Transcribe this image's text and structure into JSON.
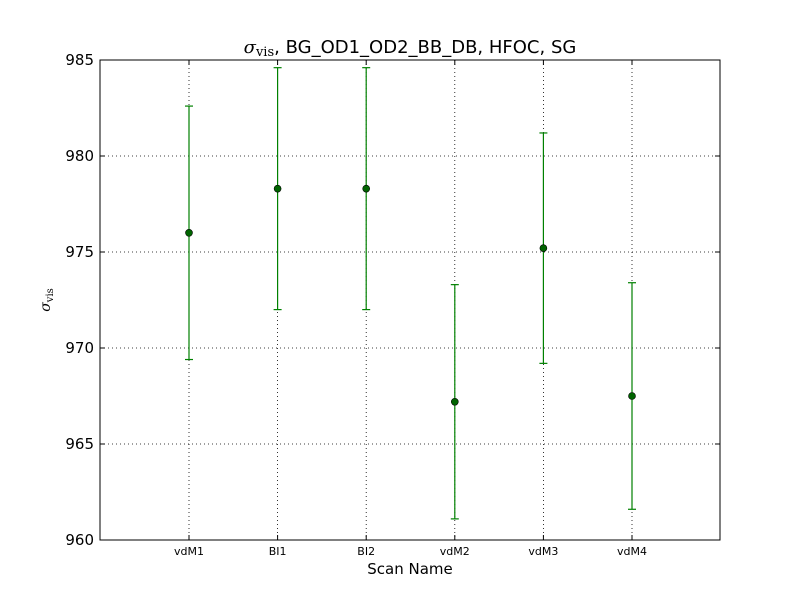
{
  "chart_data": {
    "type": "scatter",
    "title_symbol": "σ",
    "title_subscript": "vis",
    "title_rest": ", BG_OD1_OD2_BB_DB, HFOC, SG",
    "xlabel": "Scan Name",
    "ylabel_symbol": "σ",
    "ylabel_subscript": "vis",
    "categories": [
      "vdM1",
      "BI1",
      "BI2",
      "vdM2",
      "vdM3",
      "vdM4"
    ],
    "series": [
      {
        "values": [
          976.0,
          978.3,
          978.3,
          967.2,
          975.2,
          967.5
        ],
        "errors": [
          6.6,
          6.3,
          6.3,
          6.1,
          6.0,
          5.9
        ]
      }
    ],
    "ylim": [
      960,
      985
    ],
    "yticks": [
      "960",
      "965",
      "970",
      "975",
      "980",
      "985"
    ],
    "grid": true,
    "marker_color": "#006400",
    "errorbar_color": "#008000"
  }
}
